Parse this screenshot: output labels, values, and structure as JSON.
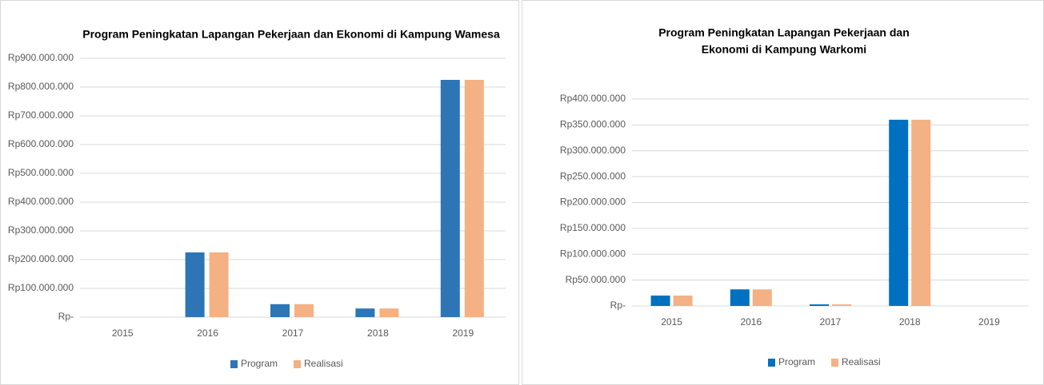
{
  "chart_data": [
    {
      "type": "bar",
      "title": [
        "Program Peningkatan Lapangan Pekerjaan dan Ekonomi di Kampung Wamesa"
      ],
      "categories": [
        "2015",
        "2016",
        "2017",
        "2018",
        "2019"
      ],
      "series": [
        {
          "name": "Program",
          "color": "#2e75b6",
          "values": [
            0,
            225000000,
            45000000,
            30000000,
            825000000
          ]
        },
        {
          "name": "Realisasi",
          "color": "#f4b183",
          "values": [
            0,
            225000000,
            45000000,
            30000000,
            825000000
          ]
        }
      ],
      "ylim": [
        0,
        900000000
      ],
      "yticks": [
        {
          "value": 0,
          "label": "Rp-"
        },
        {
          "value": 100000000,
          "label": "Rp100.000.000"
        },
        {
          "value": 200000000,
          "label": "Rp200.000.000"
        },
        {
          "value": 300000000,
          "label": "Rp300.000.000"
        },
        {
          "value": 400000000,
          "label": "Rp400.000.000"
        },
        {
          "value": 500000000,
          "label": "Rp500.000.000"
        },
        {
          "value": 600000000,
          "label": "Rp600.000.000"
        },
        {
          "value": 700000000,
          "label": "Rp700.000.000"
        },
        {
          "value": 800000000,
          "label": "Rp800.000.000"
        },
        {
          "value": 900000000,
          "label": "Rp900.000.000"
        }
      ],
      "grid": true,
      "legend": "bottom"
    },
    {
      "type": "bar",
      "title": [
        "Program Peningkatan Lapangan Pekerjaan dan",
        "Ekonomi di Kampung Warkomi"
      ],
      "categories": [
        "2015",
        "2016",
        "2017",
        "2018",
        "2019"
      ],
      "series": [
        {
          "name": "Program",
          "color": "#0070c0",
          "values": [
            20000000,
            32000000,
            3000000,
            360000000,
            0
          ]
        },
        {
          "name": "Realisasi",
          "color": "#f4b183",
          "values": [
            20000000,
            32000000,
            3000000,
            360000000,
            0
          ]
        }
      ],
      "ylim": [
        0,
        400000000
      ],
      "yticks": [
        {
          "value": 0,
          "label": "Rp-"
        },
        {
          "value": 50000000,
          "label": "Rp50.000.000"
        },
        {
          "value": 100000000,
          "label": "Rp100.000.000"
        },
        {
          "value": 150000000,
          "label": "Rp150.000.000"
        },
        {
          "value": 200000000,
          "label": "Rp200.000.000"
        },
        {
          "value": 250000000,
          "label": "Rp250.000.000"
        },
        {
          "value": 300000000,
          "label": "Rp300.000.000"
        },
        {
          "value": 350000000,
          "label": "Rp350.000.000"
        },
        {
          "value": 400000000,
          "label": "Rp400.000.000"
        }
      ],
      "grid": true,
      "legend": "bottom"
    }
  ]
}
